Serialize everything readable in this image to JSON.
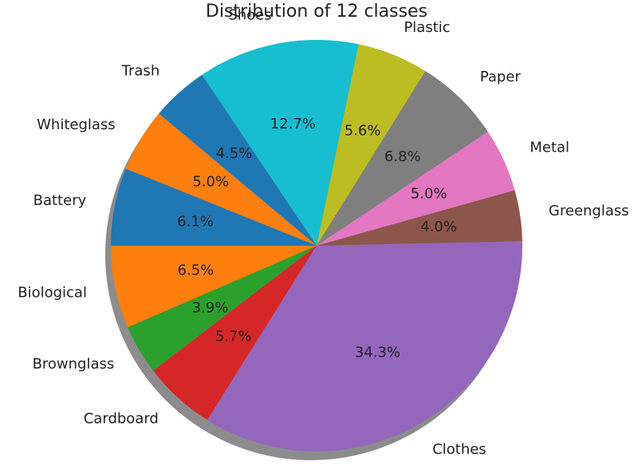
{
  "chart_data": {
    "type": "pie",
    "title": "Distribution of 12 classes",
    "start_angle_deg": 180,
    "direction": "counterclockwise",
    "shadow": true,
    "slices": [
      {
        "label": "Biological",
        "value": 6.5,
        "pct_label": "6.5%",
        "color": "#ff7f0e"
      },
      {
        "label": "Brownglass",
        "value": 3.9,
        "pct_label": "3.9%",
        "color": "#2ca02c"
      },
      {
        "label": "Cardboard",
        "value": 5.7,
        "pct_label": "5.7%",
        "color": "#d62728"
      },
      {
        "label": "Clothes",
        "value": 34.3,
        "pct_label": "34.3%",
        "color": "#9467bd"
      },
      {
        "label": "Greenglass",
        "value": 4.0,
        "pct_label": "4.0%",
        "color": "#8c564b"
      },
      {
        "label": "Metal",
        "value": 5.0,
        "pct_label": "5.0%",
        "color": "#e377c2"
      },
      {
        "label": "Paper",
        "value": 6.8,
        "pct_label": "6.8%",
        "color": "#7f7f7f"
      },
      {
        "label": "Plastic",
        "value": 5.6,
        "pct_label": "5.6%",
        "color": "#bcbd22"
      },
      {
        "label": "Shoes",
        "value": 12.7,
        "pct_label": "12.7%",
        "color": "#17becf"
      },
      {
        "label": "Trash",
        "value": 4.5,
        "pct_label": "4.5%",
        "color": "#1f77b4"
      },
      {
        "label": "Whiteglass",
        "value": 5.0,
        "pct_label": "5.0%",
        "color": "#ff7f0e"
      },
      {
        "label": "Battery",
        "value": 6.1,
        "pct_label": "6.1%",
        "color": "#1f77b4"
      }
    ]
  }
}
